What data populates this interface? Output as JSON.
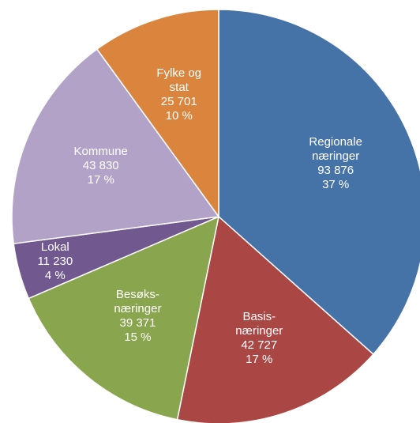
{
  "chart_data": {
    "type": "pie",
    "categories": [
      "Regionale næringer",
      "Basis-næringer",
      "Besøks-næringer",
      "Lokal",
      "Kommune",
      "Fylke og stat"
    ],
    "values": [
      93876,
      42727,
      39371,
      11230,
      43830,
      25701
    ],
    "value_labels": [
      "93 876",
      "42 727",
      "39 371",
      "11 230",
      "43 830",
      "25 701"
    ],
    "percentages": [
      37,
      17,
      15,
      4,
      17,
      10
    ],
    "percentage_labels": [
      "37 %",
      "17 %",
      "15 %",
      "4 %",
      "17 %",
      "10 %"
    ],
    "colors": [
      "#4572a7",
      "#aa4643",
      "#89a54e",
      "#71588f",
      "#b3a2c7",
      "#db843d"
    ]
  }
}
